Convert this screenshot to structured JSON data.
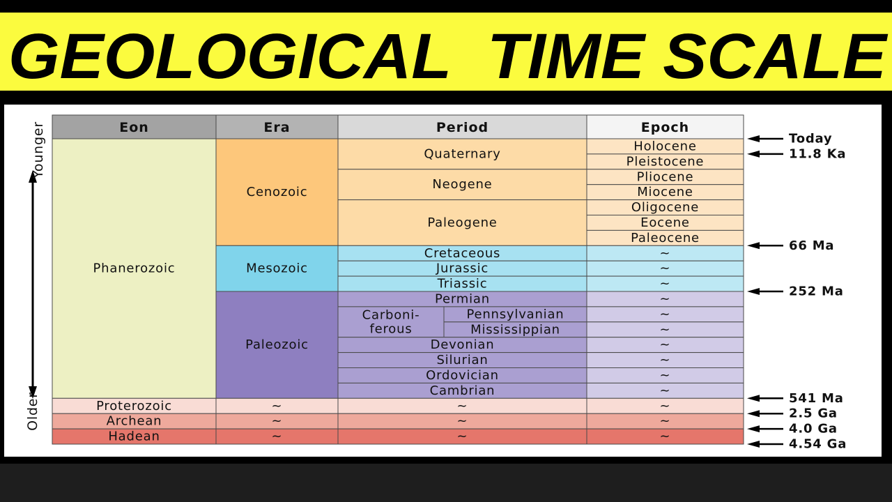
{
  "header": {
    "title": "GEOLOGICAL  TIME SCALE"
  },
  "table": {
    "columns": [
      "Eon",
      "Era",
      "Period",
      "Epoch"
    ],
    "eons": [
      {
        "name": "Phanerozoic",
        "eras": [
          {
            "name": "Cenozoic",
            "periods": [
              {
                "name": "Quaternary",
                "epochs": [
                  "Holocene",
                  "Pleistocene"
                ]
              },
              {
                "name": "Neogene",
                "epochs": [
                  "Pliocene",
                  "Miocene"
                ]
              },
              {
                "name": "Paleogene",
                "epochs": [
                  "Oligocene",
                  "Eocene",
                  "Paleocene"
                ]
              }
            ]
          },
          {
            "name": "Mesozoic",
            "periods": [
              {
                "name": "Cretaceous",
                "epochs": [
                  "~"
                ]
              },
              {
                "name": "Jurassic",
                "epochs": [
                  "~"
                ]
              },
              {
                "name": "Triassic",
                "epochs": [
                  "~"
                ]
              }
            ]
          },
          {
            "name": "Paleozoic",
            "periods": [
              {
                "name": "Permian",
                "epochs": [
                  "~"
                ]
              },
              {
                "name": [
                  "Carboni-",
                  "ferous"
                ],
                "subperiods": [
                  {
                    "name": "Pennsylvanian",
                    "epochs": [
                      "~"
                    ]
                  },
                  {
                    "name": "Mississippian",
                    "epochs": [
                      "~"
                    ]
                  }
                ]
              },
              {
                "name": "Devonian",
                "epochs": [
                  "~"
                ]
              },
              {
                "name": "Silurian",
                "epochs": [
                  "~"
                ]
              },
              {
                "name": "Ordovician",
                "epochs": [
                  "~"
                ]
              },
              {
                "name": "Cambrian",
                "epochs": [
                  "~"
                ]
              }
            ]
          }
        ]
      },
      {
        "name": "Proterozoic",
        "eras": [
          {
            "name": "~",
            "periods": [
              {
                "name": "~",
                "epochs": [
                  "~"
                ]
              }
            ]
          }
        ]
      },
      {
        "name": "Archean",
        "eras": [
          {
            "name": "~",
            "periods": [
              {
                "name": "~",
                "epochs": [
                  "~"
                ]
              }
            ]
          }
        ]
      },
      {
        "name": "Hadean",
        "eras": [
          {
            "name": "~",
            "periods": [
              {
                "name": "~",
                "epochs": [
                  "~"
                ]
              }
            ]
          }
        ]
      }
    ]
  },
  "time_markers": [
    "Today",
    "11.8 Ka",
    "66 Ma",
    "252 Ma",
    "541 Ma",
    "2.5 Ga",
    "4.0 Ga",
    "4.54 Ga"
  ],
  "side_labels": {
    "top": "Younger",
    "bottom": "Older"
  }
}
